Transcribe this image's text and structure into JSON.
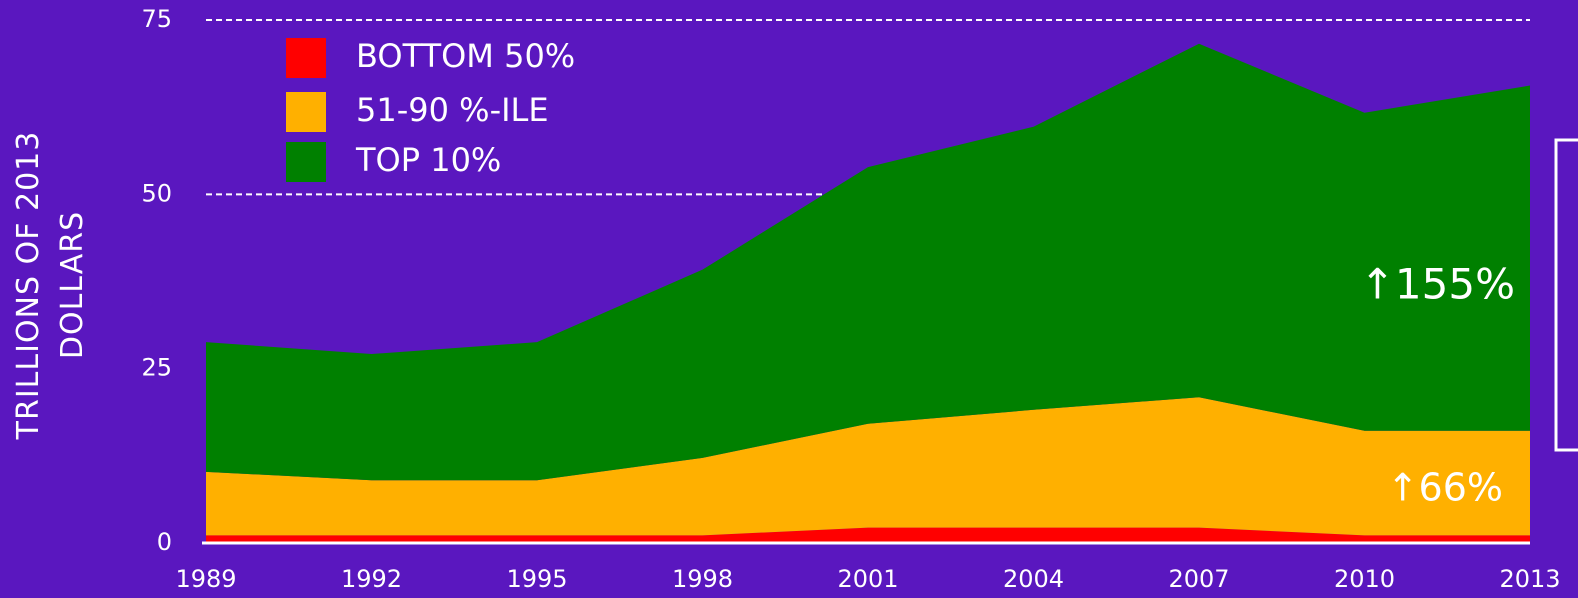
{
  "chart_data": {
    "type": "stacked_area",
    "y_label": "TRILLIONS OF 2013 DOLLARS",
    "x": [
      1989,
      1992,
      1995,
      1998,
      2001,
      2004,
      2007,
      2010,
      2013
    ],
    "xlim": [
      1989,
      2013
    ],
    "ylim": [
      0,
      75
    ],
    "yticks": [
      0,
      25,
      50,
      75
    ],
    "grid": true,
    "series": [
      {
        "name": "BOTTOM 50%",
        "color": "#ff0000",
        "values": [
          1.1,
          1.1,
          1.1,
          1.1,
          2.2,
          2.2,
          2.2,
          1.1,
          1.1
        ]
      },
      {
        "name": "51-90 %-ILE",
        "color": "#ffb000",
        "values": [
          9.1,
          7.9,
          7.9,
          11.1,
          14.9,
          16.9,
          18.7,
          15.0,
          15.0
        ]
      },
      {
        "name": "TOP 10%",
        "color": "#008000",
        "values": [
          18.6,
          18.1,
          19.8,
          27.0,
          36.8,
          40.6,
          50.7,
          45.6,
          49.5
        ]
      }
    ],
    "annotations": [
      "↑155%",
      "↑66%"
    ]
  }
}
